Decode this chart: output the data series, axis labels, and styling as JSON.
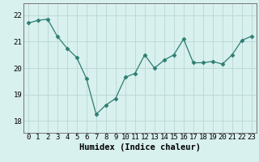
{
  "x": [
    0,
    1,
    2,
    3,
    4,
    5,
    6,
    7,
    8,
    9,
    10,
    11,
    12,
    13,
    14,
    15,
    16,
    17,
    18,
    19,
    20,
    21,
    22,
    23
  ],
  "y": [
    21.7,
    21.8,
    21.85,
    21.2,
    20.75,
    20.4,
    19.6,
    18.25,
    18.6,
    18.85,
    19.65,
    19.8,
    20.5,
    20.0,
    20.3,
    20.5,
    21.1,
    20.2,
    20.2,
    20.25,
    20.15,
    20.5,
    21.05,
    21.2
  ],
  "line_color": "#2d7d72",
  "marker": "D",
  "marker_size": 2.5,
  "marker_edge_width": 0.5,
  "bg_color": "#d8f0ee",
  "grid_color": "#b8d8d5",
  "xlabel": "Humidex (Indice chaleur)",
  "xlim": [
    -0.5,
    23.5
  ],
  "ylim": [
    17.55,
    22.45
  ],
  "yticks": [
    18,
    19,
    20,
    21,
    22
  ],
  "xticks": [
    0,
    1,
    2,
    3,
    4,
    5,
    6,
    7,
    8,
    9,
    10,
    11,
    12,
    13,
    14,
    15,
    16,
    17,
    18,
    19,
    20,
    21,
    22,
    23
  ],
  "xtick_labels": [
    "0",
    "1",
    "2",
    "3",
    "4",
    "5",
    "6",
    "7",
    "8",
    "9",
    "10",
    "11",
    "12",
    "13",
    "14",
    "15",
    "16",
    "17",
    "18",
    "19",
    "20",
    "21",
    "22",
    "23"
  ],
  "tick_font_size": 6.5,
  "xlabel_size": 7.5
}
